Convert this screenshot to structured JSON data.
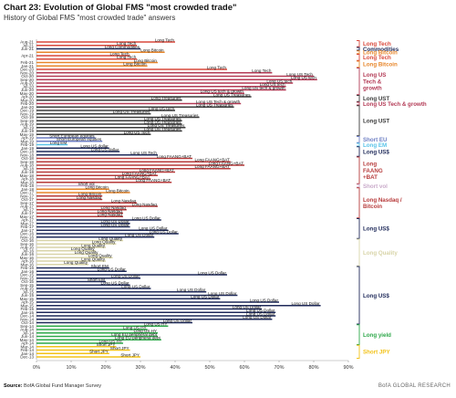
{
  "header": {
    "title": "Chart 23: Evolution of Global FMS \"most crowded trade\"",
    "subtitle": "History of Global FMS \"most crowded trade\" answers"
  },
  "footer": {
    "source_label": "Source:",
    "source_text": "BofA Global Fund Manager Survey",
    "brand": "BofA GLOBAL RESEARCH"
  },
  "colors": {
    "long_tech": "#d9483b",
    "commodities": "#1f2a5a",
    "long_bitcoin": "#e7862b",
    "tech_growth": "#b33a55",
    "long_ust": "#3a3a3a",
    "short_eu": "#6e7fc4",
    "long_em": "#59c3e8",
    "long_usd": "#1f2a5a",
    "faang": "#b73b3b",
    "short_vol": "#c9a9c9",
    "long_quality": "#d8d4a8",
    "long_yield": "#2ea84a",
    "short_jpy": "#f2c218",
    "axis": "#999999"
  },
  "chart_data": {
    "type": "bar",
    "orientation": "horizontal",
    "title": "Chart 23: Evolution of Global FMS \"most crowded trade\"",
    "subtitle": "History of Global FMS \"most crowded trade\" answers",
    "xlim": [
      0,
      90
    ],
    "x_ticks": [
      "0%",
      "10%",
      "20%",
      "30%",
      "40%",
      "50%",
      "60%",
      "70%",
      "80%",
      "90%"
    ],
    "y_tick_labels": [
      "Aug-21",
      "Jul-21",
      "Jun-21",
      "Apr-21",
      "Feb-21",
      "Jan-21",
      "Dec-20",
      "Nov-20",
      "Oct-20",
      "Sep-20",
      "Aug-20",
      "Jul-20",
      "Jun-20",
      "May-20",
      "Apr-20",
      "Mar-20",
      "Feb-20",
      "Jan-20",
      "Dec-19",
      "Nov-19",
      "Oct-19",
      "Sep-19",
      "Aug-19",
      "Jul-19",
      "Jun-19",
      "May-19",
      "Apr-19",
      "Mar-19",
      "Feb-19",
      "Jan-19",
      "Dec-18",
      "Nov-18",
      "Oct-18",
      "Sep-18",
      "Aug-18",
      "Jul-18",
      "Jun-18",
      "May-18",
      "Apr-18",
      "Mar-18",
      "Feb-18",
      "Jan-18",
      "Dec-17",
      "Nov-17",
      "Oct-17",
      "Sep-17",
      "Aug-17",
      "Jul-17",
      "Jun-17",
      "May-17",
      "Apr-17",
      "Mar-17",
      "Feb-17",
      "Jan-17",
      "Dec-16",
      "Nov-16",
      "Oct-16",
      "Sep-16",
      "Aug-16",
      "Jul-16",
      "Jun-16",
      "May-16",
      "Apr-16",
      "Mar-16",
      "Feb-16",
      "Jan-16",
      "Dec-15",
      "Nov-15",
      "Oct-15",
      "Sep-15",
      "Aug-15",
      "Jul-15",
      "Jun-15",
      "May-15",
      "Apr-15",
      "Mar-15",
      "Feb-15",
      "Jan-15",
      "Dec-14",
      "Nov-14",
      "Oct-14",
      "Sep-14",
      "Aug-14",
      "Jul-14",
      "Jun-14",
      "May-14",
      "Apr-14",
      "Mar-14",
      "Feb-14",
      "Jan-14",
      "Dec-13"
    ],
    "y_tick_label_every": 2,
    "bars": [
      {
        "date": "Aug-21",
        "label": "Long Tech",
        "value": 40,
        "color": "long_tech"
      },
      {
        "date": "Jul-21",
        "label": "Long Tech",
        "value": 29,
        "color": "long_tech"
      },
      {
        "date": "Jun-21",
        "label": "Long Commodities",
        "value": 30,
        "color": "commodities"
      },
      {
        "date": "May-21",
        "label": "Long Bitcoin",
        "value": 37,
        "color": "long_bitcoin"
      },
      {
        "date": "Apr-21",
        "label": "Long Tech",
        "value": 27,
        "color": "long_tech"
      },
      {
        "date": "Mar-21",
        "label": "Long Tech",
        "value": 29,
        "color": "long_tech"
      },
      {
        "date": "Feb-21",
        "label": "Long Bitcoin",
        "value": 35,
        "color": "long_bitcoin"
      },
      {
        "date": "Jan-21",
        "label": "Long Bitcoin",
        "value": 32,
        "color": "long_bitcoin"
      },
      {
        "date": "Dec-20",
        "label": "Long Tech",
        "value": 55,
        "color": "long_tech"
      },
      {
        "date": "Nov-20",
        "label": "Long Tech",
        "value": 68,
        "color": "tech_growth"
      },
      {
        "date": "Oct-20",
        "label": "Long US Tech",
        "value": 80,
        "color": "tech_growth"
      },
      {
        "date": "Sep-20",
        "label": "Long US tech",
        "value": 81,
        "color": "tech_growth"
      },
      {
        "date": "Aug-20",
        "label": "Long US tech",
        "value": 74,
        "color": "tech_growth"
      },
      {
        "date": "Jul-20",
        "label": "Long US tech",
        "value": 72,
        "color": "tech_growth"
      },
      {
        "date": "Jun-20",
        "label": "Long US tech & growth",
        "value": 72,
        "color": "tech_growth"
      },
      {
        "date": "May-20",
        "label": "Long US tech & growth",
        "value": 60,
        "color": "tech_growth"
      },
      {
        "date": "Apr-20",
        "label": "Long US Treasuries",
        "value": 62,
        "color": "long_ust"
      },
      {
        "date": "Mar-20",
        "label": "Long Treasuries",
        "value": 42,
        "color": "long_ust"
      },
      {
        "date": "Feb-20",
        "label": "Long US Tech & growth",
        "value": 59,
        "color": "tech_growth"
      },
      {
        "date": "Jan-20",
        "label": "Long US Treasuries",
        "value": 57,
        "color": "long_ust"
      },
      {
        "date": "Dec-19",
        "label": "Long US tech",
        "value": 40,
        "color": "long_ust"
      },
      {
        "date": "Nov-19",
        "label": "Long US Treasuries",
        "value": 33,
        "color": "long_ust"
      },
      {
        "date": "Oct-19",
        "label": "Long US Treasuries",
        "value": 47,
        "color": "long_ust"
      },
      {
        "date": "Sep-19",
        "label": "Long US Treasuries",
        "value": 42,
        "color": "long_ust"
      },
      {
        "date": "Aug-19",
        "label": "Long US Treasuries",
        "value": 42,
        "color": "long_ust"
      },
      {
        "date": "Jul-19",
        "label": "Long US Treasuries",
        "value": 43,
        "color": "long_ust"
      },
      {
        "date": "Jun-19",
        "label": "Long US Treasuries",
        "value": 42,
        "color": "long_ust"
      },
      {
        "date": "May-19",
        "label": "Long US Tech",
        "value": 33,
        "color": "long_ust"
      },
      {
        "date": "Apr-19",
        "label": "Short European equities",
        "value": 17,
        "color": "short_eu"
      },
      {
        "date": "Mar-19",
        "label": "Short European equities",
        "value": 19,
        "color": "short_eu"
      },
      {
        "date": "Feb-19",
        "label": "Long EM",
        "value": 9,
        "color": "long_em"
      },
      {
        "date": "Jan-19",
        "label": "Long US dollar",
        "value": 21,
        "color": "long_usd"
      },
      {
        "date": "Dec-18",
        "label": "Long US dollar",
        "value": 24,
        "color": "long_usd"
      },
      {
        "date": "Nov-18",
        "label": "Long US Tech",
        "value": 35,
        "color": "long_usd"
      },
      {
        "date": "Oct-18",
        "label": "Long FAANG+BAT",
        "value": 45,
        "color": "faang"
      },
      {
        "date": "Sep-18",
        "label": "Long FAANG+BAT",
        "value": 56,
        "color": "faang"
      },
      {
        "date": "Aug-18",
        "label": "Long FAANG+BAT",
        "value": 60,
        "color": "faang"
      },
      {
        "date": "Jul-18",
        "label": "Long FAANG+BAT",
        "value": 56,
        "color": "faang"
      },
      {
        "date": "Jun-18",
        "label": "Long FAANG+BAT",
        "value": 40,
        "color": "faang"
      },
      {
        "date": "May-18",
        "label": "Long FAANG+BAT",
        "value": 35,
        "color": "faang"
      },
      {
        "date": "Apr-18",
        "label": "Long FAANG+BAT",
        "value": 33,
        "color": "faang"
      },
      {
        "date": "Mar-18",
        "label": "Long FAANG+BAT",
        "value": 39,
        "color": "faang"
      },
      {
        "date": "Feb-18",
        "label": "Short vol",
        "value": 17,
        "color": "short_vol"
      },
      {
        "date": "Jan-18",
        "label": "Long Bitcoin",
        "value": 21,
        "color": "long_bitcoin"
      },
      {
        "date": "Dec-17",
        "label": "Long Bitcoin",
        "value": 27,
        "color": "long_bitcoin"
      },
      {
        "date": "Nov-17",
        "label": "Long Bitcoin",
        "value": 19,
        "color": "faang"
      },
      {
        "date": "Oct-17",
        "label": "Long Nasdaq",
        "value": 19,
        "color": "faang"
      },
      {
        "date": "Sep-17",
        "label": "Long Nasdaq",
        "value": 29,
        "color": "faang"
      },
      {
        "date": "Aug-17",
        "label": "Long Nasdaq",
        "value": 35,
        "color": "faang"
      },
      {
        "date": "Jul-17",
        "label": "Long Nasdaq",
        "value": 26,
        "color": "faang"
      },
      {
        "date": "Jun-17",
        "label": "Long Nasdaq",
        "value": 25,
        "color": "faang"
      },
      {
        "date": "May-17",
        "label": "Long Nasdaq",
        "value": 25,
        "color": "faang"
      },
      {
        "date": "Apr-17",
        "label": "Long US Dollar",
        "value": 36,
        "color": "long_usd"
      },
      {
        "date": "Mar-17",
        "label": "Long US Dollar",
        "value": 27,
        "color": "long_usd"
      },
      {
        "date": "Feb-17",
        "label": "Long US Dollar",
        "value": 27,
        "color": "long_usd"
      },
      {
        "date": "Jan-17",
        "label": "Long US Dollar",
        "value": 38,
        "color": "long_usd"
      },
      {
        "date": "Dec-16",
        "label": "Long US Dollar",
        "value": 41,
        "color": "long_usd"
      },
      {
        "date": "Nov-16",
        "label": "Long US Dollar",
        "value": 34,
        "color": "long_usd"
      },
      {
        "date": "Oct-16",
        "label": "Long Quality",
        "value": 25,
        "color": "long_quality"
      },
      {
        "date": "Sep-16",
        "label": "Long Quality",
        "value": 23,
        "color": "long_quality"
      },
      {
        "date": "Aug-16",
        "label": "Long Quality",
        "value": 20,
        "color": "long_quality"
      },
      {
        "date": "Jul-16",
        "label": "Long Quality",
        "value": 17,
        "color": "long_quality"
      },
      {
        "date": "Jun-16",
        "label": "Long Quality",
        "value": 18,
        "color": "long_quality"
      },
      {
        "date": "May-16",
        "label": "Long Quality",
        "value": 22,
        "color": "long_quality"
      },
      {
        "date": "Apr-16",
        "label": "Long Quality",
        "value": 20,
        "color": "long_quality"
      },
      {
        "date": "Mar-16",
        "label": "Long Quality",
        "value": 15,
        "color": "long_quality"
      },
      {
        "date": "Feb-16",
        "label": "Short EM",
        "value": 21,
        "color": "long_usd"
      },
      {
        "date": "Jan-16",
        "label": "Long US Dollar",
        "value": 26,
        "color": "long_usd"
      },
      {
        "date": "Dec-15",
        "label": "Long US Dollar",
        "value": 55,
        "color": "long_usd"
      },
      {
        "date": "Nov-15",
        "label": "Long US Dollar",
        "value": 30,
        "color": "long_usd"
      },
      {
        "date": "Oct-15",
        "label": "Short EM",
        "value": 20,
        "color": "long_usd"
      },
      {
        "date": "Sep-15",
        "label": "Long US Dollar",
        "value": 27,
        "color": "long_usd"
      },
      {
        "date": "Aug-15",
        "label": "Long US Dollar",
        "value": 33,
        "color": "long_usd"
      },
      {
        "date": "Jul-15",
        "label": "Long US Dollar",
        "value": 49,
        "color": "long_usd"
      },
      {
        "date": "Jun-15",
        "label": "Long US Dollar",
        "value": 58,
        "color": "long_usd"
      },
      {
        "date": "May-15",
        "label": "Long US Dollar",
        "value": 53,
        "color": "long_usd"
      },
      {
        "date": "Apr-15",
        "label": "Long US Dollar",
        "value": 70,
        "color": "long_usd"
      },
      {
        "date": "Mar-15",
        "label": "Long US Dollar",
        "value": 82,
        "color": "long_usd"
      },
      {
        "date": "Feb-15",
        "label": "Long US Dollar",
        "value": 65,
        "color": "long_usd"
      },
      {
        "date": "Jan-15",
        "label": "Long US Dollar",
        "value": 69,
        "color": "long_usd"
      },
      {
        "date": "Dec-14",
        "label": "Long US Dollar",
        "value": 69,
        "color": "long_usd"
      },
      {
        "date": "Nov-14",
        "label": "Long US Dollar",
        "value": 68,
        "color": "long_usd"
      },
      {
        "date": "Oct-14",
        "label": "Long US Dollar",
        "value": 45,
        "color": "long_usd"
      },
      {
        "date": "Sep-14",
        "label": "Long US HY",
        "value": 38,
        "color": "long_yield"
      },
      {
        "date": "Aug-14",
        "label": "Long US HY",
        "value": 32,
        "color": "long_yield"
      },
      {
        "date": "Jul-14",
        "label": "Long US HY",
        "value": 35,
        "color": "long_yield"
      },
      {
        "date": "Jun-14",
        "label": "Long EU peripheral debt",
        "value": 35,
        "color": "long_yield"
      },
      {
        "date": "May-14",
        "label": "Long EU peripheral debt",
        "value": 36,
        "color": "long_yield"
      },
      {
        "date": "Apr-14",
        "label": "Long US HY",
        "value": 25,
        "color": "long_yield"
      },
      {
        "date": "Mar-14",
        "label": "Short JPY",
        "value": 23,
        "color": "short_jpy"
      },
      {
        "date": "Feb-14",
        "label": "Short JPY",
        "value": 27,
        "color": "short_jpy"
      },
      {
        "date": "Jan-14",
        "label": "Short JPY",
        "value": 21,
        "color": "short_jpy"
      },
      {
        "date": "Dec-13",
        "label": "Short JPY",
        "value": 30,
        "color": "short_jpy"
      }
    ],
    "bracket_groups": [
      {
        "label": "Long Tech",
        "from": "Aug-21",
        "to": "Jul-21",
        "color": "long_tech"
      },
      {
        "label": "Commodities",
        "from": "Jun-21",
        "to": "Jun-21",
        "color": "commodities"
      },
      {
        "label": "Long Bitcoin",
        "from": "May-21",
        "to": "May-21",
        "color": "long_bitcoin"
      },
      {
        "label": "Long Tech",
        "from": "Apr-21",
        "to": "Mar-21",
        "color": "long_tech"
      },
      {
        "label": "Long Bitcoin",
        "from": "Feb-21",
        "to": "Jan-21",
        "color": "long_bitcoin"
      },
      {
        "label": "Long US Tech & growth",
        "from": "Dec-20",
        "to": "May-20",
        "color": "tech_growth"
      },
      {
        "label": "Long UST",
        "from": "Apr-20",
        "to": "Mar-20",
        "color": "long_ust"
      },
      {
        "label": "Long US Tech & growth",
        "from": "Feb-20",
        "to": "Feb-20",
        "color": "tech_growth"
      },
      {
        "label": "Long UST",
        "from": "Jan-20",
        "to": "May-19",
        "color": "long_ust"
      },
      {
        "label": "Short EU",
        "from": "Apr-19",
        "to": "Mar-19",
        "color": "short_eu"
      },
      {
        "label": "Long EM",
        "from": "Feb-19",
        "to": "Feb-19",
        "color": "long_em"
      },
      {
        "label": "Long US$",
        "from": "Jan-19",
        "to": "Nov-18",
        "color": "long_usd"
      },
      {
        "label": "Long FAANG +BAT",
        "from": "Oct-18",
        "to": "Mar-18",
        "color": "faang"
      },
      {
        "label": "Short vol",
        "from": "Feb-18",
        "to": "Feb-18",
        "color": "short_vol"
      },
      {
        "label": "Long Nasdaq / Bitcoin",
        "from": "Jan-18",
        "to": "May-17",
        "color": "faang"
      },
      {
        "label": "Long US$",
        "from": "Apr-17",
        "to": "Nov-16",
        "color": "long_usd"
      },
      {
        "label": "Long Quality",
        "from": "Oct-16",
        "to": "Mar-16",
        "color": "long_quality"
      },
      {
        "label": "Long US$",
        "from": "Feb-16",
        "to": "Oct-14",
        "color": "long_usd"
      },
      {
        "label": "Long yield",
        "from": "Sep-14",
        "to": "Apr-14",
        "color": "long_yield"
      },
      {
        "label": "Short JPY",
        "from": "Mar-14",
        "to": "Dec-13",
        "color": "short_jpy"
      }
    ]
  }
}
